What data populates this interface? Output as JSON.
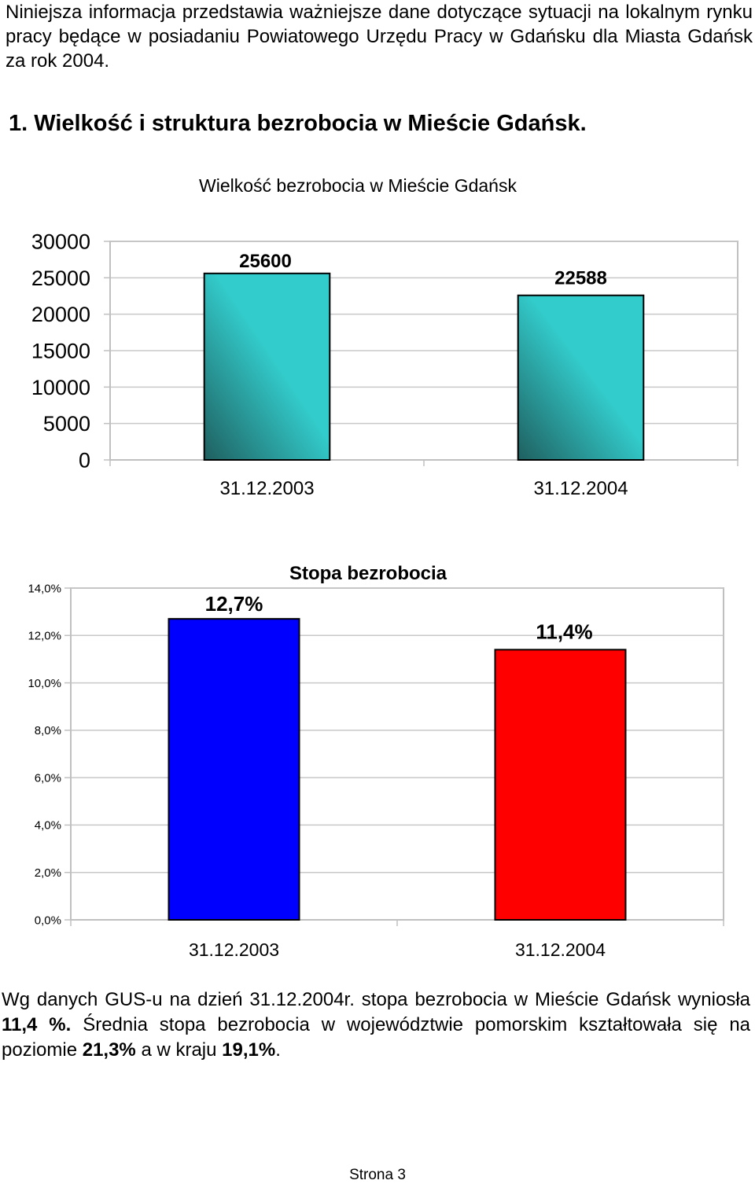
{
  "document": {
    "intro": "Niniejsza informacja przedstawia ważniejsze dane dotyczące sytuacji na lokalnym rynku pracy będące w posiadaniu Powiatowego Urzędu Pracy w Gdańsku dla Miasta Gdańsk za rok 2004.",
    "section_heading": "1. Wielkość i struktura bezrobocia w Mieście Gdańsk.",
    "conclusion": {
      "part1": "Wg danych GUS-u na dzień 31.12.2004r. stopa bezrobocia w Mieście Gdańsk wyniosła ",
      "rate_city": "11,4 %.",
      "part2": " Średnia stopa bezrobocia w województwie pomorskim kształtowała się na poziomie ",
      "rate_region": "21,3%",
      "part3": " a w kraju ",
      "rate_country": "19,1%",
      "part4": "."
    },
    "footer": "Strona 3"
  },
  "chart_data": [
    {
      "type": "bar",
      "title": "Wielkość bezrobocia w Mieście Gdańsk",
      "categories": [
        "31.12.2003",
        "31.12.2004"
      ],
      "values": [
        25600,
        22588
      ],
      "data_labels": [
        "25600",
        "22588"
      ],
      "ylim": [
        0,
        30000
      ],
      "yticks": [
        0,
        5000,
        10000,
        15000,
        20000,
        25000,
        30000
      ],
      "ytick_labels": [
        "0",
        "5000",
        "10000",
        "15000",
        "20000",
        "25000",
        "30000"
      ],
      "grid": true,
      "legend": false,
      "bar_colors": [
        "#33cccc",
        "#1f5f5f"
      ]
    },
    {
      "type": "bar",
      "title": "Stopa bezrobocia",
      "categories": [
        "31.12.2003",
        "31.12.2004"
      ],
      "values": [
        12.7,
        11.4
      ],
      "data_labels": [
        "12,7%",
        "11,4%"
      ],
      "ylim": [
        0,
        14
      ],
      "yticks": [
        0,
        2,
        4,
        6,
        8,
        10,
        12,
        14
      ],
      "ytick_labels": [
        "0,0%",
        "2,0%",
        "4,0%",
        "6,0%",
        "8,0%",
        "10,0%",
        "12,0%",
        "14,0%"
      ],
      "grid": true,
      "legend": false,
      "bar_colors": [
        "#0000ff",
        "#ff0000"
      ]
    }
  ]
}
